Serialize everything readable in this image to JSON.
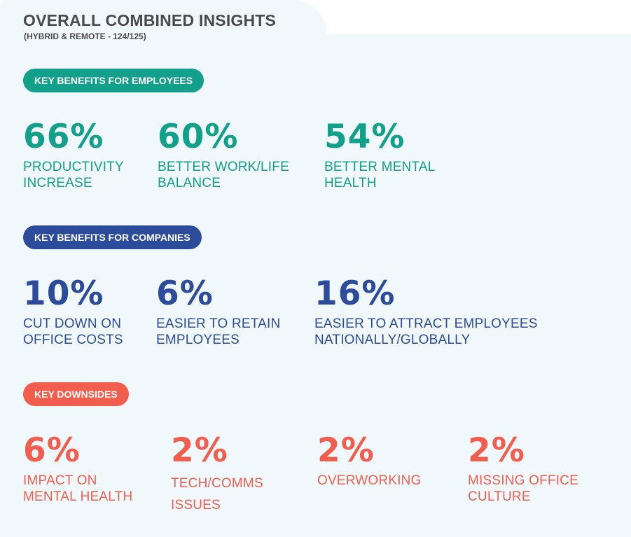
{
  "header": {
    "title": "OVERALL COMBINED INSIGHTS",
    "subtitle": "(HYBRID & REMOTE - 124/125)"
  },
  "colors": {
    "employees": "#13a08a",
    "companies": "#2c4c9b",
    "downsides": "#f25e4d",
    "background": "#f1f8fc",
    "title": "#4a4a4a"
  },
  "employees": {
    "heading": "KEY BENEFITS FOR EMPLOYEES",
    "stats": [
      {
        "value": "66%",
        "line1": "PRODUCTIVITY",
        "line2": "INCREASE"
      },
      {
        "value": "60%",
        "line1": "BETTER WORK/LIFE",
        "line2": "BALANCE"
      },
      {
        "value": "54%",
        "line1": "BETTER MENTAL",
        "line2": "HEALTH"
      }
    ]
  },
  "companies": {
    "heading": "KEY BENEFITS FOR COMPANIES",
    "stats": [
      {
        "value": "10%",
        "line1": "CUT DOWN ON",
        "line2": "OFFICE COSTS"
      },
      {
        "value": "6%",
        "line1": "EASIER TO RETAIN",
        "line2": "EMPLOYEES"
      },
      {
        "value": "16%",
        "line1": "EASIER TO ATTRACT EMPLOYEES",
        "line2": "NATIONALLY/GLOBALLY"
      }
    ]
  },
  "downsides": {
    "heading": "KEY DOWNSIDES",
    "stats": [
      {
        "value": "6%",
        "line1": "IMPACT ON",
        "line2": "MENTAL HEALTH"
      },
      {
        "value": "2%",
        "line1": "TECH/COMMS",
        "line2": "ISSUES"
      },
      {
        "value": "2%",
        "line1": "OVERWORKING",
        "line2": ""
      },
      {
        "value": "2%",
        "line1": "MISSING OFFICE",
        "line2": "CULTURE"
      }
    ]
  }
}
